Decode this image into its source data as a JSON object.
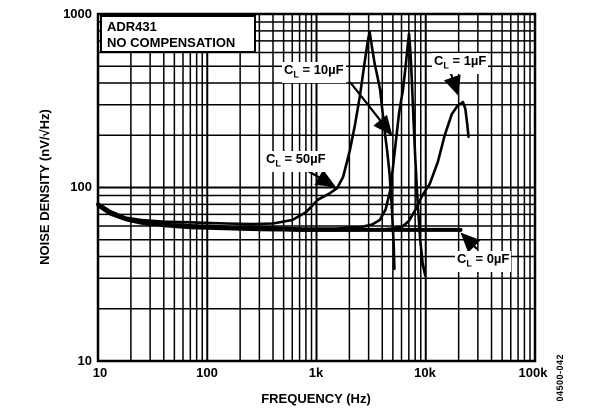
{
  "figure": {
    "title_box": {
      "line1": "ADR431",
      "line2": "NO COMPENSATION"
    },
    "watermark": "04500-042",
    "colors": {
      "line": "#000000",
      "background": "#ffffff"
    }
  },
  "chart_data": {
    "type": "line",
    "title": "ADR431 NO COMPENSATION",
    "xlabel": "FREQUENCY (Hz)",
    "ylabel": "NOISE DENSITY (nV/√Hz)",
    "xscale": "log",
    "yscale": "log",
    "xlim": [
      10,
      100000
    ],
    "ylim": [
      10,
      1000
    ],
    "grid": true,
    "legend_position": "inline-annotations",
    "x_ticks": [
      {
        "label": "10",
        "value": 10
      },
      {
        "label": "100",
        "value": 100
      },
      {
        "label": "1k",
        "value": 1000
      },
      {
        "label": "10k",
        "value": 10000
      },
      {
        "label": "100k",
        "value": 100000
      }
    ],
    "y_ticks": [
      {
        "label": "1000",
        "value": 1000
      },
      {
        "label": "100",
        "value": 100
      },
      {
        "label": "10",
        "value": 10
      }
    ],
    "series": [
      {
        "name": "CL = 0µF",
        "x": [
          10,
          13,
          18,
          25,
          40,
          70,
          100,
          150,
          250,
          400,
          700,
          1500,
          3000,
          6000,
          10000,
          15000,
          20800
        ],
        "y": [
          80,
          72,
          66,
          63,
          61,
          60,
          59.5,
          59,
          58,
          57.5,
          57,
          57,
          57,
          57,
          57,
          57,
          57
        ]
      },
      {
        "name": "CL = 50µF",
        "x": [
          10,
          13,
          18,
          25,
          40,
          70,
          100,
          150,
          250,
          400,
          600,
          800,
          1030,
          1300,
          1540,
          1750,
          2020,
          2250,
          2500,
          2750,
          2950,
          3060,
          3200,
          3400,
          3600,
          3820,
          4000,
          4230,
          4450,
          4660,
          4900,
          5080,
          5160
        ],
        "y": [
          81,
          73,
          67,
          65,
          63.5,
          63,
          62.5,
          62,
          61.5,
          62,
          65,
          72,
          85,
          92,
          99,
          115,
          164,
          230,
          340,
          520,
          700,
          790,
          660,
          520,
          440,
          365,
          280,
          206,
          160,
          121,
          75,
          48,
          34
        ]
      },
      {
        "name": "CL = 10µF",
        "x": [
          10,
          13,
          18,
          25,
          40,
          70,
          100,
          200,
          400,
          800,
          1500,
          2500,
          3200,
          3800,
          4300,
          4800,
          5000,
          5340,
          5700,
          6180,
          6500,
          6800,
          7030,
          7250,
          7450,
          7700,
          8000,
          8400,
          8900,
          9400,
          9900
        ],
        "y": [
          79,
          71,
          65.5,
          63,
          61,
          60,
          59.5,
          59,
          58.5,
          58,
          58,
          59,
          61,
          65,
          75,
          100,
          130,
          187,
          270,
          364,
          480,
          640,
          770,
          600,
          420,
          260,
          150,
          85,
          50,
          36,
          31
        ]
      },
      {
        "name": "CL = 1µF",
        "x": [
          10,
          13,
          18,
          25,
          40,
          70,
          100,
          300,
          800,
          2000,
          3500,
          5000,
          6000,
          7000,
          8000,
          9300,
          10900,
          12900,
          14900,
          17300,
          19500,
          21900,
          23000,
          24000,
          24600
        ],
        "y": [
          78,
          70,
          65,
          62,
          60,
          58.5,
          58,
          57,
          56.5,
          56.5,
          57,
          58,
          59,
          64,
          74,
          90,
          105,
          140,
          200,
          265,
          295,
          311,
          285,
          230,
          196
        ]
      }
    ],
    "annotations": [
      {
        "pre": "C",
        "sub": "L",
        "post": " = 10µF",
        "points_to_series": "CL = 10µF"
      },
      {
        "pre": "C",
        "sub": "L",
        "post": " = 1µF",
        "points_to_series": "CL = 1µF"
      },
      {
        "pre": "C",
        "sub": "L",
        "post": " = 50µF",
        "points_to_series": "CL = 50µF"
      },
      {
        "pre": "C",
        "sub": "L",
        "post": " = 0µF",
        "points_to_series": "CL = 0µF"
      }
    ]
  }
}
